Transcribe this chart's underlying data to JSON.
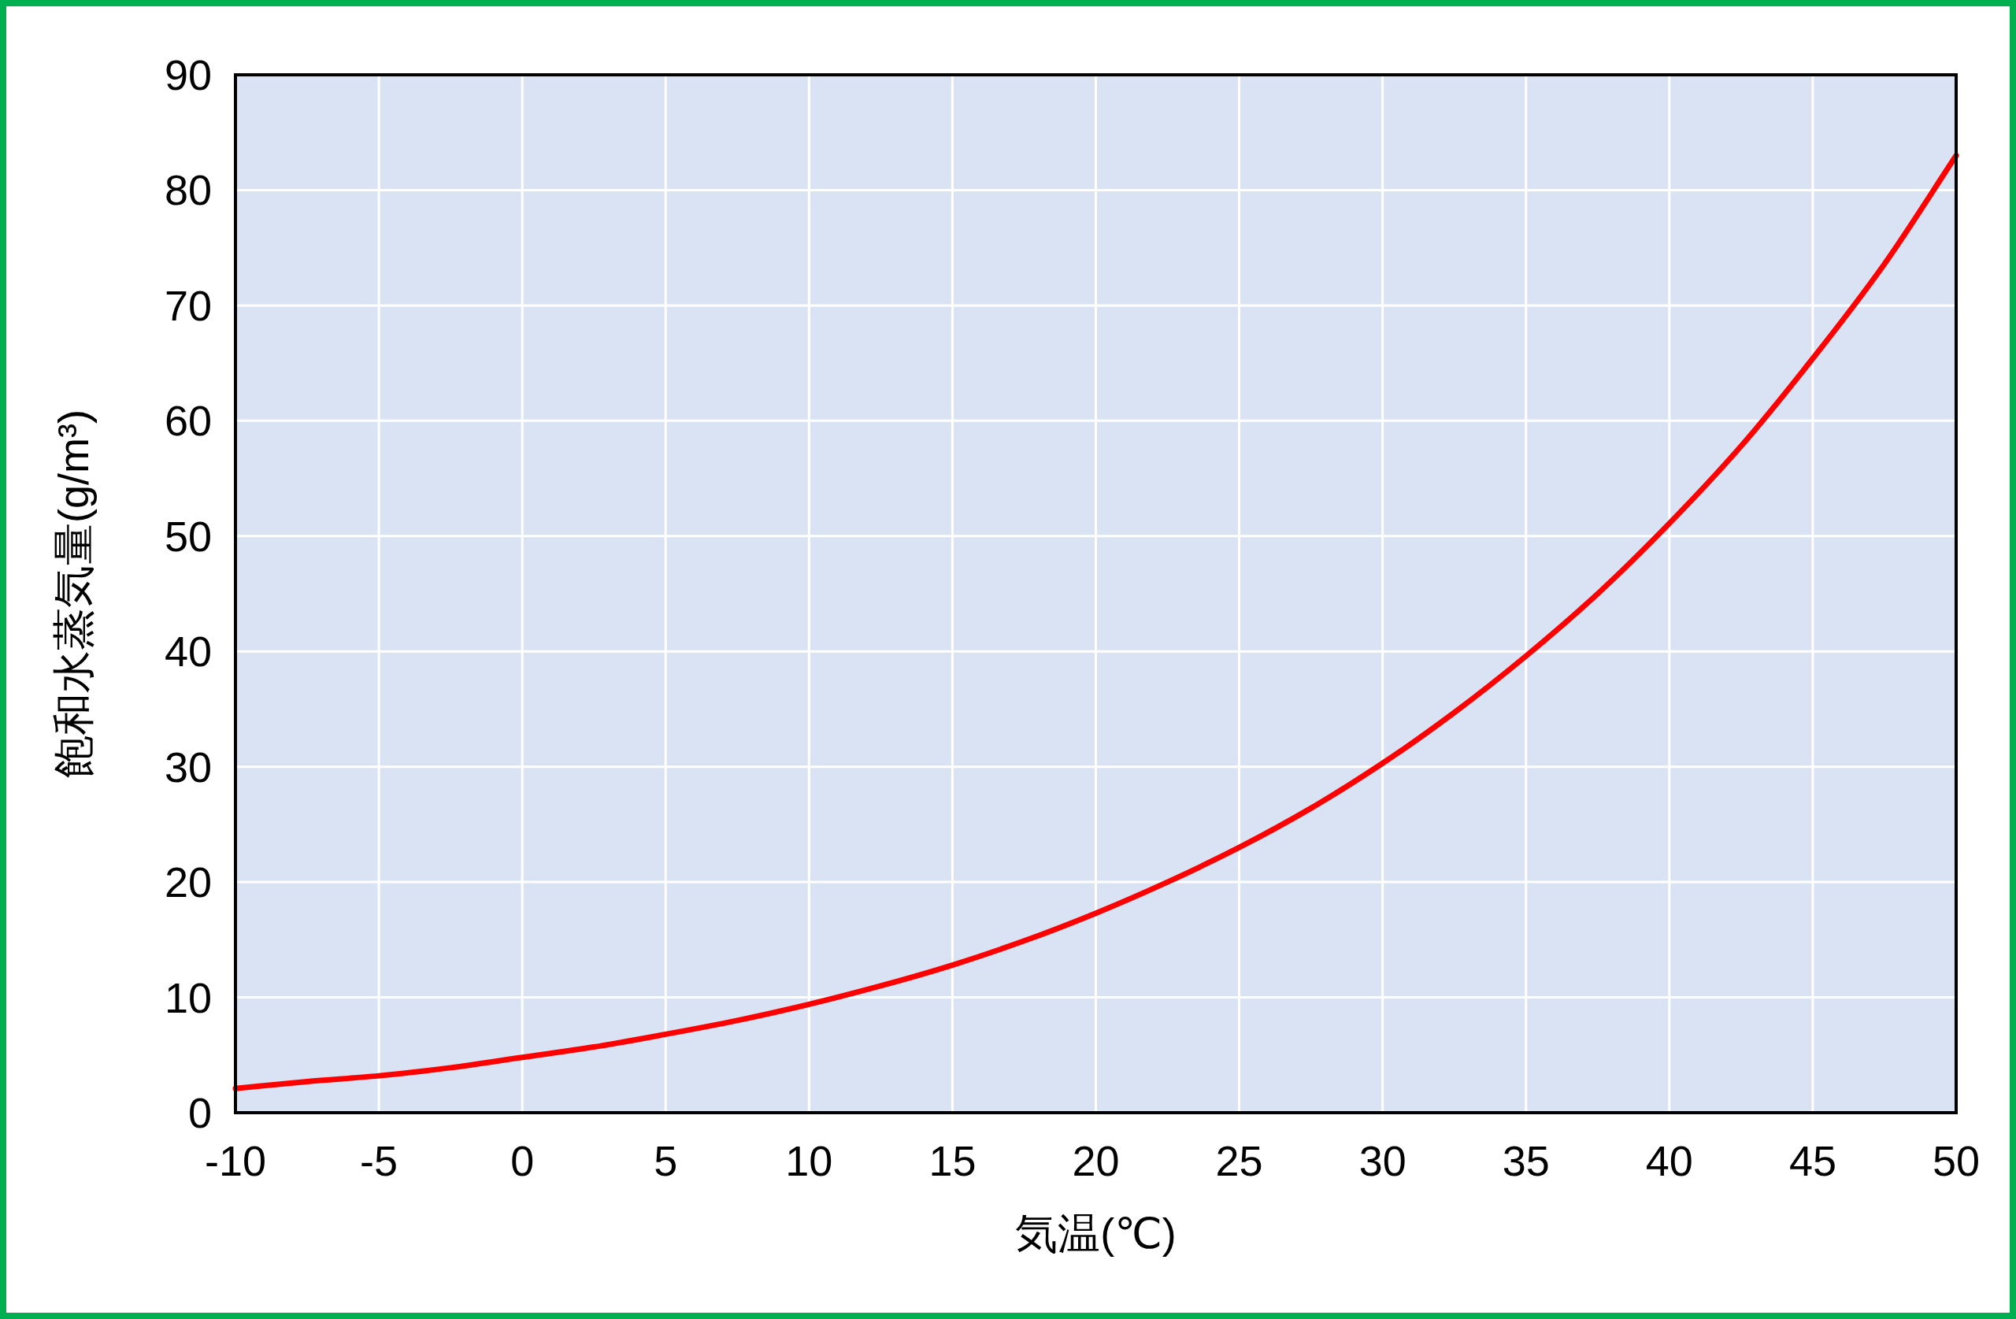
{
  "chart_data": {
    "type": "line",
    "xlabel": "気温(℃)",
    "ylabel": "飽和水蒸気量(g/m³)",
    "x": [
      -10,
      -7.5,
      -5,
      -2.5,
      0,
      2.5,
      5,
      7.5,
      10,
      12.5,
      15,
      17.5,
      20,
      22.5,
      25,
      27.5,
      30,
      32.5,
      35,
      37.5,
      40,
      42.5,
      45,
      47.5,
      50
    ],
    "series": [
      {
        "color": "#ff0000",
        "values": [
          2.1,
          2.7,
          3.2,
          3.9,
          4.8,
          5.7,
          6.8,
          8.0,
          9.4,
          11.0,
          12.8,
          14.9,
          17.3,
          20.0,
          23.0,
          26.4,
          30.3,
          34.7,
          39.6,
          45.0,
          51.1,
          57.8,
          65.4,
          73.6,
          83.0
        ]
      }
    ],
    "xlim": [
      -10,
      50
    ],
    "ylim": [
      0,
      90
    ],
    "xticks": [
      -10,
      -5,
      0,
      5,
      10,
      15,
      20,
      25,
      30,
      35,
      40,
      45,
      50
    ],
    "yticks": [
      0,
      10,
      20,
      30,
      40,
      50,
      60,
      70,
      80,
      90
    ],
    "grid": true
  }
}
